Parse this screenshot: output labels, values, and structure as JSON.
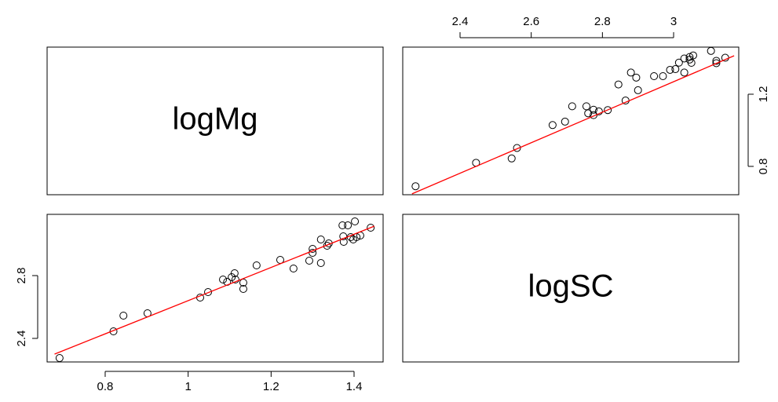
{
  "chart_data": {
    "type": "pairs",
    "labels": [
      "logMg",
      "logSC"
    ],
    "logMg": [
      0.69,
      0.82,
      0.844,
      0.902,
      1.029,
      1.048,
      1.084,
      1.094,
      1.105,
      1.112,
      1.114,
      1.133,
      1.133,
      1.165,
      1.222,
      1.254,
      1.292,
      1.3,
      1.3,
      1.32,
      1.32,
      1.335,
      1.339,
      1.372,
      1.374,
      1.375,
      1.385,
      1.392,
      1.398,
      1.402,
      1.406,
      1.415,
      1.44
    ],
    "logSC": [
      2.275,
      2.445,
      2.545,
      2.56,
      2.66,
      2.695,
      2.775,
      2.76,
      2.79,
      2.815,
      2.775,
      2.755,
      2.715,
      2.865,
      2.9,
      2.845,
      2.895,
      2.945,
      2.97,
      2.88,
      3.03,
      2.99,
      3.005,
      3.12,
      3.05,
      3.015,
      3.12,
      3.045,
      3.03,
      3.145,
      3.045,
      3.055,
      3.105
    ],
    "point_color": "#000000",
    "smooth_color": "#ff0000",
    "lower": {
      "xlim": [
        0.66,
        1.47
      ],
      "ylim": [
        2.25,
        3.19
      ],
      "xticks": [
        0.8,
        1.0,
        1.2,
        1.4
      ],
      "yticks": [
        2.4,
        2.8
      ],
      "smooth": {
        "x": [
          0.678,
          1.449
        ],
        "y": [
          2.3,
          3.115
        ]
      }
    },
    "upper": {
      "xlim": [
        2.239,
        3.183
      ],
      "ylim": [
        0.643,
        1.461
      ],
      "xticks": [
        2.4,
        2.6,
        2.8,
        3.0
      ],
      "yticks": [
        0.8,
        1.2
      ],
      "smooth": {
        "x": [
          2.265,
          3.17
        ],
        "y": [
          0.648,
          1.413
        ]
      }
    }
  }
}
